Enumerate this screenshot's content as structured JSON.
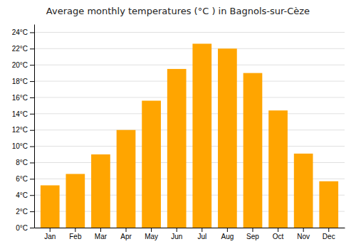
{
  "chart_data": {
    "type": "bar",
    "title": "Average monthly temperatures (°C ) in Bagnols-sur-Cèze",
    "categories": [
      "Jan",
      "Feb",
      "Mar",
      "Apr",
      "May",
      "Jun",
      "Jul",
      "Aug",
      "Sep",
      "Oct",
      "Nov",
      "Dec"
    ],
    "values": [
      5.2,
      6.6,
      9.0,
      12.0,
      15.6,
      19.5,
      22.6,
      22.0,
      19.0,
      14.4,
      9.1,
      5.7
    ],
    "color": "#FFA500",
    "ylim": [
      0,
      25
    ],
    "yticks": [
      {
        "value": 0,
        "label": "0°C"
      },
      {
        "value": 2,
        "label": "2°C"
      },
      {
        "value": 4,
        "label": "4°C"
      },
      {
        "value": 6,
        "label": "6°C"
      },
      {
        "value": 8,
        "label": "8°C"
      },
      {
        "value": 10,
        "label": "10°C"
      },
      {
        "value": 12,
        "label": "12°C"
      },
      {
        "value": 14,
        "label": "14°C"
      },
      {
        "value": 16,
        "label": "16°C"
      },
      {
        "value": 18,
        "label": "18°C"
      },
      {
        "value": 20,
        "label": "20°C"
      },
      {
        "value": 22,
        "label": "22°C"
      },
      {
        "value": 24,
        "label": "24°C"
      }
    ],
    "grid": true
  }
}
